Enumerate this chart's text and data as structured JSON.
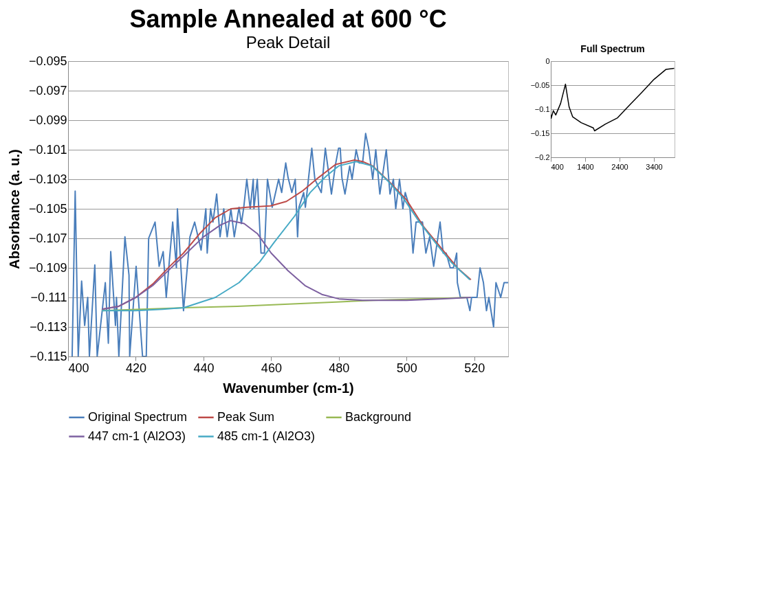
{
  "chart_data": [
    {
      "type": "line",
      "title": "Sample Annealed at 600 °C",
      "subtitle": "Peak Detail",
      "xlabel": "Wavenumber (cm-1)",
      "ylabel": "Absorbance (a. u.)",
      "xlim": [
        400,
        530
      ],
      "xticks": [
        400,
        420,
        440,
        460,
        480,
        500,
        520
      ],
      "ylim": [
        -0.115,
        -0.095
      ],
      "yticks": [
        -0.095,
        -0.097,
        -0.099,
        -0.101,
        -0.103,
        -0.105,
        -0.107,
        -0.109,
        -0.111,
        -0.113,
        -0.115
      ],
      "grid": "y",
      "legend": "bottom",
      "marker": "none",
      "line_style": "solid",
      "series": [
        {
          "name": "Original Spectrum",
          "color": "#4a7ebb",
          "x": [
            401.2,
            402.1,
            403.0,
            404.0,
            404.9,
            405.8,
            406.3,
            407.9,
            408.6,
            409.6,
            411.0,
            411.9,
            412.6,
            414.0,
            414.3,
            415.0,
            416.8,
            418.0,
            418.2,
            420.1,
            422.0,
            423.1,
            423.8,
            425.7,
            426.9,
            428.1,
            429.0,
            430.9,
            432.0,
            432.3,
            434.1,
            436.0,
            437.4,
            439.3,
            440.7,
            441.1,
            442.1,
            442.8,
            443.9,
            444.9,
            446.0,
            447.0,
            448.1,
            449.1,
            450.5,
            451.2,
            451.9,
            452.8,
            453.8,
            454.7,
            454.9,
            455.9,
            457.0,
            458.0,
            458.9,
            460.3,
            461.2,
            462.2,
            463.1,
            464.3,
            465.0,
            466.1,
            467.1,
            467.8,
            468.2,
            469.6,
            470.1,
            472.0,
            472.9,
            474.8,
            476.0,
            477.8,
            479.0,
            479.9,
            480.4,
            480.9,
            481.8,
            483.2,
            483.9,
            485.1,
            486.0,
            487.0,
            487.9,
            488.8,
            490.0,
            490.9,
            492.1,
            494.0,
            495.1,
            496.1,
            496.8,
            497.9,
            498.9,
            499.6,
            501.0,
            501.9,
            502.8,
            504.7,
            505.7,
            506.8,
            508.0,
            509.9,
            510.8,
            511.7,
            512.9,
            513.8,
            514.8,
            515.0,
            515.9,
            517.8,
            518.7,
            519.2,
            520.8,
            521.7,
            522.7,
            523.6,
            524.3,
            525.7,
            526.4,
            527.8,
            528.8,
            530.0
          ],
          "values": [
            -0.115,
            -0.1038,
            -0.115,
            -0.1099,
            -0.1129,
            -0.111,
            -0.115,
            -0.1088,
            -0.115,
            -0.1129,
            -0.11,
            -0.1141,
            -0.1079,
            -0.1129,
            -0.111,
            -0.115,
            -0.1069,
            -0.1095,
            -0.115,
            -0.1089,
            -0.115,
            -0.115,
            -0.107,
            -0.1059,
            -0.1089,
            -0.1079,
            -0.111,
            -0.1059,
            -0.109,
            -0.105,
            -0.1119,
            -0.1069,
            -0.1059,
            -0.1078,
            -0.105,
            -0.108,
            -0.105,
            -0.1059,
            -0.104,
            -0.1069,
            -0.105,
            -0.1069,
            -0.105,
            -0.1069,
            -0.1049,
            -0.106,
            -0.1049,
            -0.103,
            -0.105,
            -0.103,
            -0.105,
            -0.103,
            -0.108,
            -0.108,
            -0.103,
            -0.1049,
            -0.104,
            -0.103,
            -0.1039,
            -0.1019,
            -0.1029,
            -0.1039,
            -0.103,
            -0.1069,
            -0.1049,
            -0.1039,
            -0.1049,
            -0.1009,
            -0.103,
            -0.1039,
            -0.1009,
            -0.104,
            -0.102,
            -0.1009,
            -0.1009,
            -0.1029,
            -0.104,
            -0.1021,
            -0.103,
            -0.101,
            -0.1019,
            -0.1019,
            -0.0999,
            -0.1009,
            -0.103,
            -0.101,
            -0.104,
            -0.101,
            -0.104,
            -0.103,
            -0.105,
            -0.103,
            -0.105,
            -0.1039,
            -0.105,
            -0.108,
            -0.1059,
            -0.1059,
            -0.108,
            -0.1069,
            -0.1089,
            -0.1059,
            -0.108,
            -0.108,
            -0.109,
            -0.109,
            -0.108,
            -0.11,
            -0.111,
            -0.111,
            -0.1119,
            -0.111,
            -0.111,
            -0.109,
            -0.11,
            -0.1119,
            -0.111,
            -0.113,
            -0.11,
            -0.111,
            -0.11,
            -0.11
          ]
        },
        {
          "name": "Peak Sum",
          "color": "#be4b48",
          "x": [
            410,
            415,
            420,
            425,
            430,
            434.1,
            438.8,
            443.5,
            448.1,
            452.8,
            459.8,
            464.5,
            469.2,
            473.9,
            479.0,
            484.6,
            487,
            490,
            495,
            500,
            505,
            510,
            515,
            519
          ],
          "values": [
            -0.1118,
            -0.1116,
            -0.111,
            -0.1101,
            -0.1089,
            -0.108,
            -0.1067,
            -0.1056,
            -0.105,
            -0.1049,
            -0.1048,
            -0.1045,
            -0.1038,
            -0.1029,
            -0.102,
            -0.1017,
            -0.1018,
            -0.1021,
            -0.1032,
            -0.1044,
            -0.1062,
            -0.1076,
            -0.109,
            -0.1098
          ]
        },
        {
          "name": "Background",
          "color": "#98b954",
          "x": [
            410,
            434.2,
            450,
            480.3,
            490,
            519
          ],
          "values": [
            -0.1119,
            -0.1117,
            -0.1116,
            -0.1113,
            -0.1112,
            -0.111
          ]
        },
        {
          "name": "447 cm-1 (Al2O3)",
          "color": "#7d60a0",
          "x": [
            410,
            415,
            420,
            425,
            430,
            435,
            440,
            445,
            448,
            452,
            456,
            460,
            465,
            470,
            475,
            480,
            487,
            500,
            510,
            519
          ],
          "values": [
            -0.1118,
            -0.1116,
            -0.111,
            -0.1102,
            -0.1091,
            -0.108,
            -0.1069,
            -0.1061,
            -0.1058,
            -0.106,
            -0.1067,
            -0.108,
            -0.1092,
            -0.1102,
            -0.1108,
            -0.1111,
            -0.1112,
            -0.1112,
            -0.1111,
            -0.111
          ]
        },
        {
          "name": "485 cm-1 (Al2O3)",
          "color": "#46aac5",
          "x": [
            410,
            420,
            428,
            434.2,
            443.5,
            450.5,
            456.6,
            460.8,
            466.9,
            471.5,
            476.2,
            479.9,
            485.1,
            489.8,
            494.4,
            499.1,
            503.8,
            508.5,
            513.1,
            518.7
          ],
          "values": [
            -0.1119,
            -0.1119,
            -0.1118,
            -0.1117,
            -0.111,
            -0.11,
            -0.1086,
            -0.1073,
            -0.1055,
            -0.1039,
            -0.1028,
            -0.1021,
            -0.1018,
            -0.1021,
            -0.1031,
            -0.1043,
            -0.1059,
            -0.1073,
            -0.1086,
            -0.1098
          ]
        }
      ]
    },
    {
      "type": "line",
      "title": "Full Spectrum",
      "xlim": [
        400,
        4000
      ],
      "xticks": [
        400,
        1400,
        2400,
        3400
      ],
      "ylim": [
        -0.2,
        0
      ],
      "yticks": [
        0,
        -0.05,
        -0.1,
        -0.15,
        -0.2
      ],
      "grid": "y",
      "legend": false,
      "marker": "none",
      "line_style": "solid",
      "series": [
        {
          "color": "#000000",
          "x": [
            400,
            410,
            474,
            545,
            686,
            827,
            932,
            1038,
            1285,
            1638,
            1673,
            1990,
            2342,
            2696,
            3049,
            3402,
            3754,
            3990
          ],
          "values": [
            -0.111,
            -0.119,
            -0.103,
            -0.112,
            -0.088,
            -0.048,
            -0.095,
            -0.116,
            -0.128,
            -0.139,
            -0.145,
            -0.131,
            -0.118,
            -0.091,
            -0.065,
            -0.038,
            -0.017,
            -0.015
          ]
        }
      ]
    }
  ]
}
